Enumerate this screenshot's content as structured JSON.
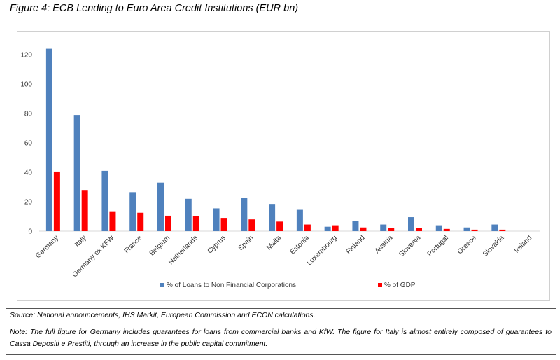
{
  "figure": {
    "title": "Figure 4: ECB Lending to Euro Area Credit Institutions (EUR bn)",
    "source": "Source: National announcements, IHS Markit, European Commission and ECON calculations.",
    "note": "Note: The full figure for Germany includes guarantees for loans from commercial banks and KfW. The figure for Italy is almost entirely composed of guarantees to Cassa Depositi e Prestiti, through an increase in the public capital commitment."
  },
  "chart_data": {
    "type": "bar",
    "title": "",
    "xlabel": "",
    "ylabel": "",
    "ylim": [
      0,
      130
    ],
    "yticks": [
      0,
      20,
      40,
      60,
      80,
      100,
      120
    ],
    "grid": false,
    "legend_position": "bottom",
    "categories": [
      "Germany",
      "Italy",
      "Germany ex KFW",
      "France",
      "Belgium",
      "Netherlands",
      "Cyprus",
      "Spain",
      "Malta",
      "Estonia",
      "Luxembourg",
      "Finland",
      "Austria",
      "Slovenia",
      "Portugal",
      "Greece",
      "Slovakia",
      "Ireland"
    ],
    "series": [
      {
        "name": "% of Loans to Non Financial Corporations",
        "color": "#4f81bd",
        "values": [
          124,
          79,
          41,
          26.5,
          33,
          22,
          15.5,
          22.5,
          18.5,
          14.5,
          3,
          7,
          4.5,
          9.5,
          4,
          2.5,
          4.5,
          0
        ]
      },
      {
        "name": "% of GDP",
        "color": "#ff0000",
        "values": [
          40.5,
          28,
          13.5,
          12.5,
          10.5,
          10,
          9,
          8,
          6.5,
          4.5,
          4,
          2.5,
          2,
          2,
          1.5,
          1,
          1,
          0
        ]
      }
    ]
  }
}
